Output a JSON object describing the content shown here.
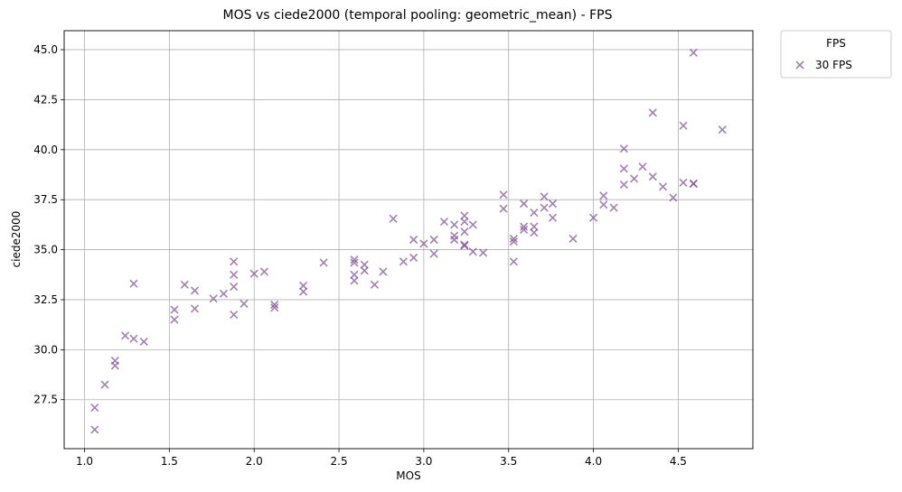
{
  "chart_data": {
    "type": "scatter",
    "title": "MOS vs ciede2000 (temporal pooling: geometric_mean) - FPS",
    "xlabel": "MOS",
    "ylabel": "ciede2000",
    "xlim": [
      0.88,
      4.94
    ],
    "ylim": [
      25.05,
      45.95
    ],
    "xticks": [
      1.0,
      1.5,
      2.0,
      2.5,
      3.0,
      3.5,
      4.0,
      4.5
    ],
    "xtick_labels": [
      "1.0",
      "1.5",
      "2.0",
      "2.5",
      "3.0",
      "3.5",
      "4.0",
      "4.5"
    ],
    "yticks": [
      27.5,
      30.0,
      32.5,
      35.0,
      37.5,
      40.0,
      42.5,
      45.0
    ],
    "ytick_labels": [
      "27.5",
      "30.0",
      "32.5",
      "35.0",
      "37.5",
      "40.0",
      "42.5",
      "45.0"
    ],
    "grid": true,
    "legend": {
      "title": "FPS",
      "placement": "outside-top-right"
    },
    "series": [
      {
        "name": "30 FPS",
        "color": "#7a4a8e",
        "marker": "x",
        "x": [
          1.06,
          1.06,
          1.12,
          1.18,
          1.18,
          1.24,
          1.29,
          1.29,
          1.35,
          1.53,
          1.53,
          1.59,
          1.65,
          1.65,
          1.76,
          1.82,
          1.88,
          1.88,
          1.88,
          1.88,
          1.94,
          2.0,
          2.06,
          2.12,
          2.12,
          2.29,
          2.29,
          2.41,
          2.59,
          2.59,
          2.59,
          2.59,
          2.65,
          2.65,
          2.71,
          2.76,
          2.82,
          2.88,
          2.94,
          2.94,
          3.0,
          3.06,
          3.06,
          3.12,
          3.18,
          3.18,
          3.18,
          3.24,
          3.24,
          3.24,
          3.24,
          3.24,
          3.29,
          3.29,
          3.35,
          3.47,
          3.47,
          3.53,
          3.53,
          3.53,
          3.59,
          3.59,
          3.59,
          3.65,
          3.65,
          3.65,
          3.71,
          3.71,
          3.76,
          3.76,
          3.88,
          4.0,
          4.06,
          4.06,
          4.12,
          4.18,
          4.18,
          4.18,
          4.24,
          4.29,
          4.35,
          4.35,
          4.41,
          4.47,
          4.53,
          4.53,
          4.59,
          4.59,
          4.59,
          4.76
        ],
        "y": [
          27.1,
          26.0,
          28.25,
          29.45,
          29.2,
          30.7,
          30.55,
          33.3,
          30.4,
          32.0,
          31.5,
          33.25,
          32.95,
          32.05,
          32.55,
          32.8,
          34.4,
          33.75,
          33.15,
          31.75,
          32.3,
          33.8,
          33.9,
          32.25,
          32.1,
          33.2,
          32.9,
          34.35,
          34.5,
          34.35,
          33.75,
          33.45,
          34.25,
          33.95,
          33.25,
          33.9,
          36.55,
          34.4,
          35.5,
          34.6,
          35.3,
          35.5,
          34.8,
          36.4,
          36.25,
          35.7,
          35.5,
          36.7,
          36.4,
          35.9,
          35.25,
          35.2,
          36.25,
          34.9,
          34.85,
          37.75,
          37.05,
          35.55,
          35.4,
          34.4,
          37.3,
          36.15,
          36.0,
          36.85,
          36.15,
          35.85,
          37.65,
          37.1,
          37.3,
          36.6,
          35.55,
          36.6,
          37.7,
          37.25,
          37.1,
          40.05,
          39.05,
          38.25,
          38.55,
          39.15,
          41.85,
          38.65,
          38.15,
          37.6,
          41.2,
          38.35,
          44.85,
          38.3,
          38.3,
          41.0
        ]
      }
    ]
  }
}
